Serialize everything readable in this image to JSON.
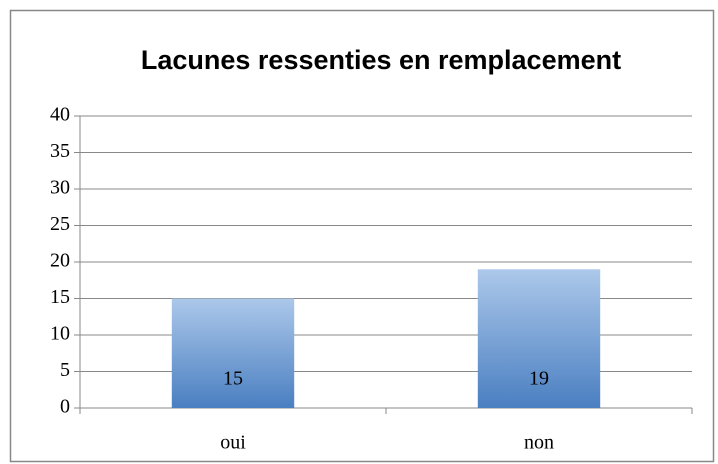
{
  "chart_data": {
    "type": "bar",
    "title": "Lacunes ressenties en remplacement",
    "categories": [
      "oui",
      "non"
    ],
    "values": [
      15,
      19
    ],
    "color": "#4a7fc1",
    "ylim": [
      0,
      40
    ],
    "yticks": [
      0,
      5,
      10,
      15,
      20,
      25,
      30,
      35,
      40
    ],
    "grid": true,
    "data_labels": true
  }
}
